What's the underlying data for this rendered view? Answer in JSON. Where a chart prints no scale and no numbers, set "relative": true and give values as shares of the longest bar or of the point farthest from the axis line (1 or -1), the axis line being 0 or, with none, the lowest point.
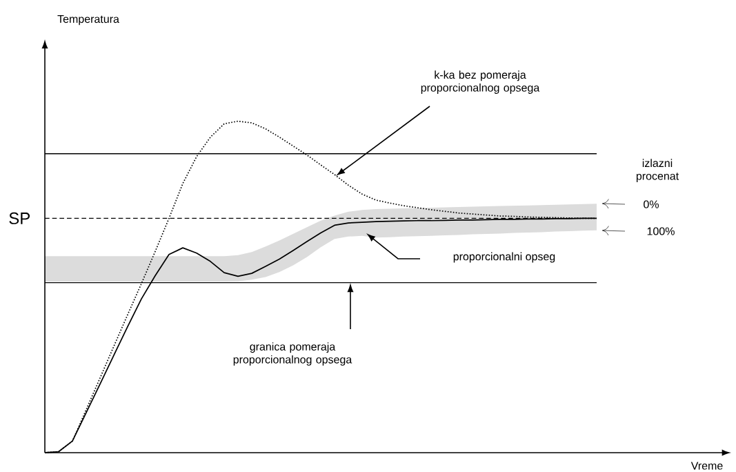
{
  "chart_data": {
    "type": "line",
    "relative": true,
    "marker": "none",
    "categories": [
      null,
      null,
      null,
      null,
      null,
      null,
      null,
      null,
      null,
      null,
      null,
      null,
      null,
      null,
      null,
      null,
      null,
      null,
      null,
      null,
      null,
      null,
      null,
      null,
      null,
      null,
      null,
      null,
      null,
      null,
      null,
      null,
      null,
      null,
      null,
      null,
      null,
      null,
      null,
      null,
      null
    ],
    "series": [
      {
        "color": "#000000",
        "line_style": "solid",
        "values": [
          0,
          0.003,
          0.035,
          0.121,
          0.207,
          0.294,
          0.38,
          0.464,
          0.534,
          0.598,
          0.618,
          0.602,
          0.577,
          0.543,
          0.532,
          0.541,
          0.562,
          0.584,
          0.61,
          0.637,
          0.663,
          0.686,
          0.693,
          0.695,
          0.697,
          0.698,
          0.699,
          0.7,
          0.7,
          0.701,
          0.702,
          0.702,
          0.703,
          0.704,
          0.704,
          0.705,
          0.705,
          0.706,
          0.706,
          0.707,
          0.707
        ],
        "upper": [
          0.593,
          0.593,
          0.593,
          0.593,
          0.593,
          0.593,
          0.593,
          0.593,
          0.593,
          0.593,
          0.593,
          0.593,
          0.593,
          0.593,
          0.596,
          0.605,
          0.622,
          0.64,
          0.66,
          0.68,
          0.7,
          0.715,
          0.727,
          0.732,
          0.735,
          0.736,
          0.737,
          0.738,
          0.739,
          0.74,
          0.741,
          0.742,
          0.743,
          0.744,
          0.745,
          0.746,
          0.747,
          0.748,
          0.749,
          0.75,
          0.751
        ],
        "lower": [
          0.516,
          0.516,
          0.516,
          0.516,
          0.516,
          0.516,
          0.516,
          0.516,
          0.516,
          0.516,
          0.516,
          0.516,
          0.516,
          0.516,
          0.517,
          0.522,
          0.53,
          0.545,
          0.565,
          0.59,
          0.62,
          0.645,
          0.652,
          0.654,
          0.649,
          0.65,
          0.652,
          0.653,
          0.654,
          0.656,
          0.657,
          0.659,
          0.66,
          0.661,
          0.663,
          0.664,
          0.665,
          0.667,
          0.668,
          0.67,
          0.671
        ]
      },
      {
        "color": "#000000",
        "line_style": "dotted",
        "values": [
          0,
          0.003,
          0.035,
          0.13,
          0.225,
          0.321,
          0.416,
          0.51,
          0.607,
          0.707,
          0.812,
          0.893,
          0.952,
          0.992,
          1,
          0.995,
          0.977,
          0.952,
          0.925,
          0.898,
          0.868,
          0.839,
          0.807,
          0.78,
          0.762,
          0.753,
          0.745,
          0.739,
          0.733,
          0.728,
          0.723,
          0.72,
          0.717,
          0.714,
          0.713,
          0.711,
          0.71,
          0.709,
          0.708,
          0.707,
          0.707
        ]
      }
    ],
    "ref_lines": [
      {
        "axis": "y",
        "value": 0.902,
        "color": "#000000",
        "line_style": "solid"
      },
      {
        "axis": "y",
        "value": 0.707,
        "label": "SP",
        "color": "#000000",
        "line_style": "dashed"
      },
      {
        "axis": "y",
        "value": 0.513,
        "color": "#000000",
        "line_style": "solid"
      }
    ],
    "annotations": [
      "k-ka bez pomeraja proporcionalnog opsega",
      "proporcionalni opseg",
      "granica pomeraja proporcionalnog opsega",
      "izlazni procenat",
      "0%",
      "100%",
      "Temperatura",
      "Vreme"
    ]
  }
}
